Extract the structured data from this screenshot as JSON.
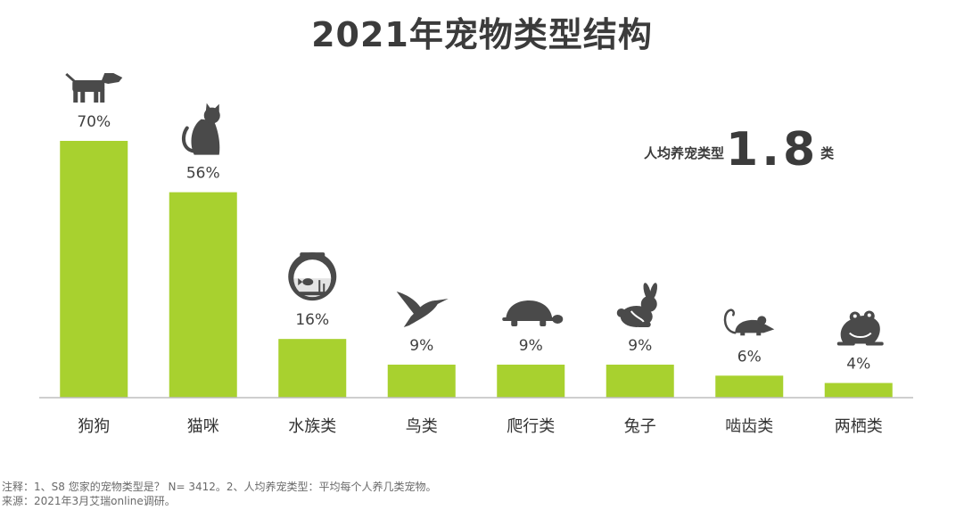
{
  "title": "2021年宠物类型结构",
  "avg_label": "人均养宠类型",
  "avg_value": "1.8",
  "avg_unit": "类",
  "notes": [
    "注释：1、S8 您家的宠物类型是？ N= 3412。2、人均养宠类型：平均每个人养几类宠物。",
    "来源：2021年3月艾瑞online调研。"
  ],
  "colors": {
    "bar": "#a8d12f",
    "icon": "#4a4a4a",
    "axis": "#bdbdbd"
  },
  "chart_data": {
    "type": "bar",
    "title": "2021年宠物类型结构",
    "categories": [
      "狗狗",
      "猫咪",
      "水族类",
      "鸟类",
      "爬行类",
      "兔子",
      "啮齿类",
      "两栖类"
    ],
    "value_labels": [
      "70%",
      "56%",
      "16%",
      "9%",
      "9%",
      "9%",
      "6%",
      "4%"
    ],
    "values": [
      70,
      56,
      16,
      9,
      9,
      9,
      6,
      4
    ],
    "icons": [
      "dog-icon",
      "cat-icon",
      "fishbowl-icon",
      "bird-icon",
      "turtle-icon",
      "rabbit-icon",
      "mouse-icon",
      "frog-icon"
    ],
    "xlabel": "",
    "ylabel": "",
    "ylim": [
      0,
      70
    ],
    "grid": false
  }
}
